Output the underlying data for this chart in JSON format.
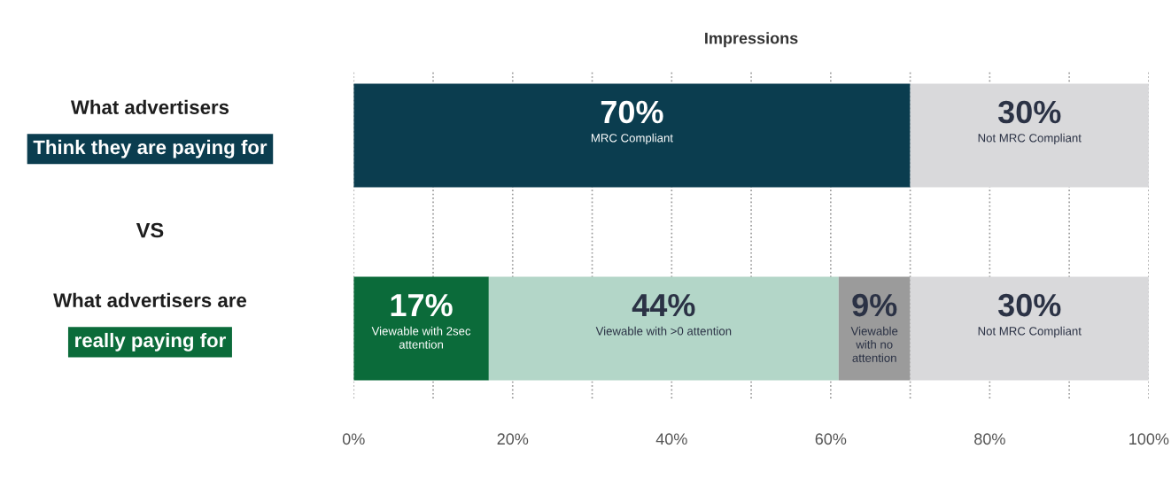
{
  "chart_data": {
    "type": "bar",
    "orientation": "horizontal",
    "stacked": true,
    "xlabel": "Impressions",
    "categories": [
      "What advertisers\nThink they are paying for",
      "What advertisers are\nreally paying for"
    ],
    "series": [
      {
        "name": "MRC Compliant",
        "color": "#0b3d4f",
        "values": [
          70,
          null
        ],
        "value_labels": [
          "70%",
          null
        ]
      },
      {
        "name": "Viewable with 2sec\nattention",
        "color": "#0b6b3a",
        "values": [
          null,
          17
        ],
        "value_labels": [
          null,
          "17%"
        ]
      },
      {
        "name": "Viewable with >0 attention",
        "color": "#b3d6c8",
        "values": [
          null,
          44
        ],
        "value_labels": [
          null,
          "44%"
        ]
      },
      {
        "name": "Viewable\nwith no\nattention",
        "color": "#9b9b9b",
        "values": [
          null,
          9
        ],
        "value_labels": [
          null,
          "9%"
        ]
      },
      {
        "name": "Not MRC Compliant",
        "color": "#d9d9db",
        "values": [
          30,
          30
        ],
        "value_labels": [
          "30%",
          "30%"
        ]
      }
    ],
    "xlim": [
      0,
      100
    ],
    "xticks": [
      {
        "value": 0,
        "label": "0%"
      },
      {
        "value": 10,
        "label": null
      },
      {
        "value": 20,
        "label": "20%"
      },
      {
        "value": 30,
        "label": null
      },
      {
        "value": 40,
        "label": "40%"
      },
      {
        "value": 50,
        "label": null
      },
      {
        "value": 60,
        "label": "60%"
      },
      {
        "value": 70,
        "label": null
      },
      {
        "value": 80,
        "label": "80%"
      },
      {
        "value": 90,
        "label": null
      },
      {
        "value": 100,
        "label": "100%"
      }
    ],
    "grid": "x",
    "line_style": "dotted",
    "legend": false,
    "annotations": [
      "VS"
    ]
  }
}
